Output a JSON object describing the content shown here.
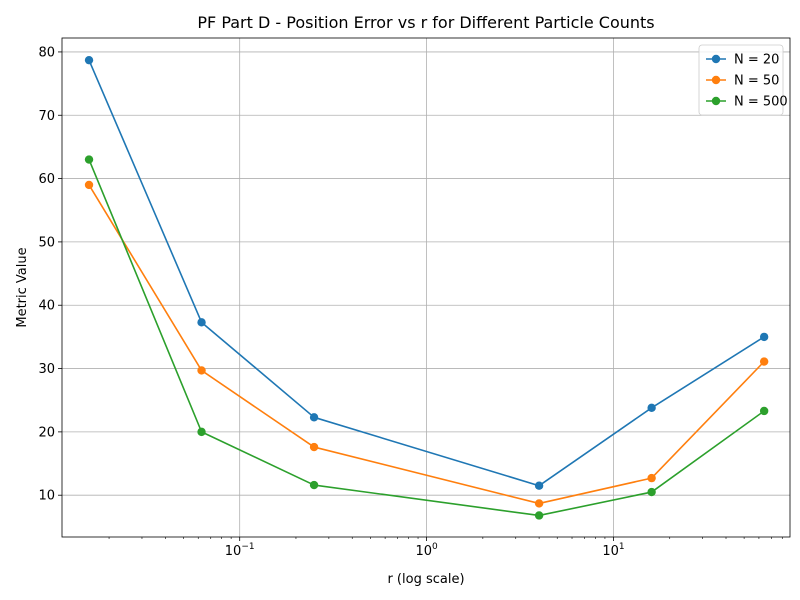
{
  "chart_data": {
    "type": "line",
    "title": "PF Part D - Position Error vs r for Different Particle Counts",
    "xlabel": "r (log scale)",
    "ylabel": "Metric Value",
    "x_scale": "log",
    "xlim": [
      0.0112,
      88.0
    ],
    "ylim": [
      3.4,
      82.2
    ],
    "x_ticks": [
      {
        "value": 0.1,
        "base": "10",
        "exp": "−1"
      },
      {
        "value": 1,
        "base": "10",
        "exp": "0"
      },
      {
        "value": 10,
        "base": "10",
        "exp": "1"
      }
    ],
    "y_ticks": [
      10,
      20,
      30,
      40,
      50,
      60,
      70,
      80
    ],
    "grid": true,
    "legend_position": "top-right",
    "x": [
      0.015625,
      0.0625,
      0.25,
      4,
      16,
      64
    ],
    "series": [
      {
        "name": "N = 20",
        "color": "#1f77b4",
        "values": [
          78.7,
          37.3,
          22.3,
          11.5,
          23.8,
          35.0
        ]
      },
      {
        "name": "N = 50",
        "color": "#ff7f0e",
        "values": [
          59.0,
          29.7,
          17.6,
          8.7,
          12.7,
          31.1
        ]
      },
      {
        "name": "N = 500",
        "color": "#2ca02c",
        "values": [
          63.0,
          20.0,
          11.6,
          6.8,
          10.5,
          23.3
        ]
      }
    ]
  }
}
